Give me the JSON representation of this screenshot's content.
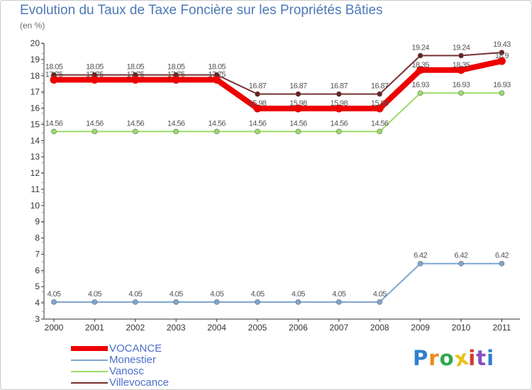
{
  "chart_data": {
    "type": "line",
    "title": "Evolution du Taux de Taxe Foncière sur les Propriétés Bâties",
    "ylabel": "(en %)",
    "xlabel": "",
    "ylim": [
      3,
      20
    ],
    "yticks": [
      3,
      4,
      5,
      6,
      7,
      8,
      9,
      10,
      11,
      12,
      13,
      14,
      15,
      16,
      17,
      18,
      19,
      20
    ],
    "categories": [
      "2000",
      "2001",
      "2002",
      "2003",
      "2004",
      "2005",
      "2006",
      "2007",
      "2008",
      "2009",
      "2010",
      "2011"
    ],
    "series": [
      {
        "name": "VOCANCE",
        "color": "#ee0000",
        "values": [
          17.75,
          17.75,
          17.75,
          17.75,
          17.75,
          15.98,
          15.98,
          15.98,
          15.98,
          18.35,
          18.35,
          18.9
        ],
        "labels": [
          "17.75",
          "17.75",
          "17.75",
          "17.75",
          "17.75",
          "15.98",
          "15.98",
          "15.98",
          "15.98",
          "18.35",
          "18.35",
          "18.9"
        ]
      },
      {
        "name": "Monestier",
        "color": "#7ea6cf",
        "values": [
          4.05,
          4.05,
          4.05,
          4.05,
          4.05,
          4.05,
          4.05,
          4.05,
          4.05,
          6.42,
          6.42,
          6.42
        ],
        "labels": [
          "4.05",
          "4.05",
          "4.05",
          "4.05",
          "4.05",
          "4.05",
          "4.05",
          "4.05",
          "4.05",
          "6.42",
          "6.42",
          "6.42"
        ]
      },
      {
        "name": "Vanosc",
        "color": "#99dd66",
        "values": [
          14.56,
          14.56,
          14.56,
          14.56,
          14.56,
          14.56,
          14.56,
          14.56,
          14.56,
          16.93,
          16.93,
          16.93
        ],
        "labels": [
          "14.56",
          "14.56",
          "14.56",
          "14.56",
          "14.56",
          "14.56",
          "14.56",
          "14.56",
          "14.56",
          "16.93",
          "16.93",
          "16.93"
        ]
      },
      {
        "name": "Villevocance",
        "color": "#7a3030",
        "values": [
          18.05,
          18.05,
          18.05,
          18.05,
          18.05,
          16.87,
          16.87,
          16.87,
          16.87,
          19.24,
          19.24,
          19.43
        ],
        "labels": [
          "18.05",
          "18.05",
          "18.05",
          "18.05",
          "18.05",
          "16.87",
          "16.87",
          "16.87",
          "16.87",
          "19.24",
          "19.24",
          "19.43"
        ]
      }
    ],
    "legend": "bottom-left",
    "grid": false
  },
  "logo": {
    "letters": [
      "P",
      "r",
      "o",
      "x",
      "i",
      "t",
      "i"
    ],
    "colors": [
      "#2f7fd0",
      "#e88a1a",
      "#2fa84f",
      "#e8c21a",
      "#d03a2f",
      "#8a4fc0",
      "#2f7fd0"
    ]
  }
}
